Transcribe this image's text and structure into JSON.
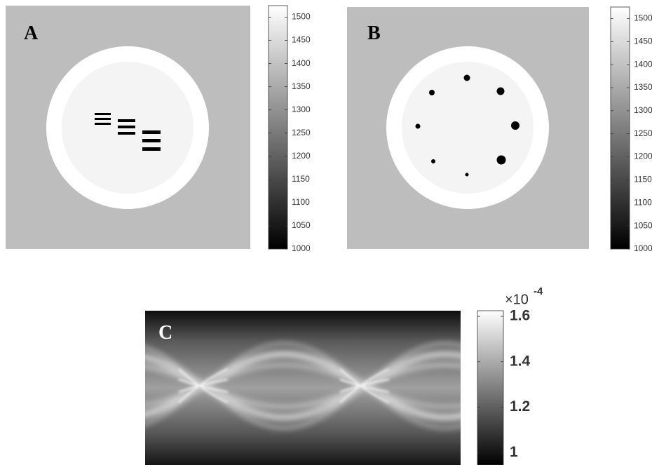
{
  "panels": [
    {
      "label": "A",
      "colorbar": {
        "lim": [
          1000,
          1525
        ],
        "ticks": [
          1000,
          1050,
          1100,
          1150,
          1200,
          1250,
          1300,
          1350,
          1400,
          1450,
          1500
        ]
      }
    },
    {
      "label": "B",
      "colorbar": {
        "lim": [
          1000,
          1525
        ],
        "ticks": [
          1000,
          1050,
          1100,
          1150,
          1200,
          1250,
          1300,
          1350,
          1400,
          1450,
          1500
        ]
      }
    },
    {
      "label": "C",
      "colorbar": {
        "lim": [
          0.945,
          1.625
        ],
        "ticks": [
          1,
          1.2,
          1.4,
          1.6
        ],
        "multiplier": "×10",
        "exponent": "-4"
      }
    }
  ]
}
